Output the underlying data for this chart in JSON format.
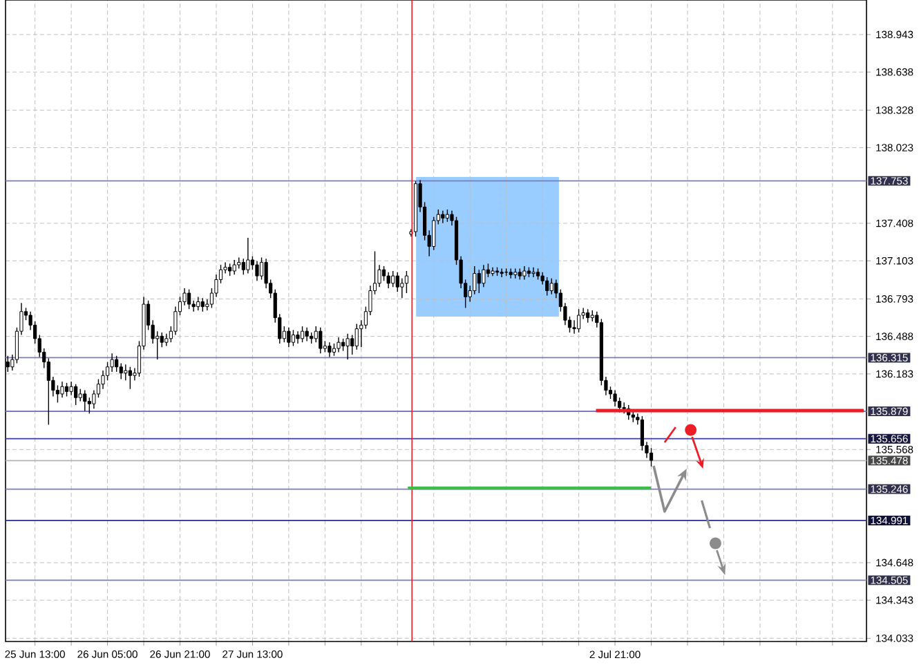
{
  "chart_data": {
    "type": "candlestick",
    "color": "#000000",
    "grid": true,
    "ylim": [
      134.007,
      139.224
    ],
    "yticks": [
      138.943,
      138.638,
      138.328,
      138.023,
      137.408,
      137.103,
      136.793,
      136.488,
      136.183,
      135.568,
      134.648,
      134.343,
      134.033
    ],
    "categories": [
      null,
      null,
      null,
      null,
      null,
      null,
      "25 Jun 13:00",
      null,
      null,
      null,
      null,
      null,
      null,
      null,
      null,
      null,
      null,
      null,
      null,
      null,
      null,
      null,
      "26 Jun 05:00",
      null,
      null,
      null,
      null,
      null,
      null,
      null,
      null,
      null,
      null,
      null,
      null,
      null,
      null,
      null,
      "26 Jun 21:00",
      null,
      null,
      null,
      null,
      null,
      null,
      null,
      null,
      null,
      null,
      null,
      null,
      null,
      null,
      null,
      "27 Jun 13:00",
      null,
      null,
      null,
      null,
      null,
      null,
      null,
      null,
      null,
      null,
      null,
      null,
      null,
      null,
      null,
      null,
      null,
      null,
      null,
      null,
      null,
      null,
      null,
      null,
      null,
      null,
      null,
      null,
      null,
      null,
      null,
      null,
      null,
      null,
      null,
      null,
      null,
      null,
      null,
      null,
      null,
      null,
      null,
      null,
      null,
      null,
      null,
      null,
      null,
      null,
      null,
      null,
      null,
      null,
      null,
      null,
      null,
      null,
      null,
      null,
      null,
      null,
      null,
      null,
      null,
      null,
      null,
      null,
      null,
      null,
      null,
      null,
      null,
      null,
      null,
      null,
      null,
      null,
      null,
      "2 Jul 21:00",
      null,
      null,
      null,
      null,
      null,
      null,
      null,
      null,
      null,
      null,
      null,
      null,
      null,
      null,
      null,
      null,
      null,
      null,
      null,
      null,
      null,
      null,
      null,
      null,
      null,
      null,
      null,
      null,
      null,
      null,
      null,
      null,
      null,
      null,
      null,
      null,
      null,
      null,
      null,
      null,
      null,
      null,
      null,
      null,
      null,
      null,
      null,
      null,
      null,
      null,
      null,
      null,
      null,
      null,
      null
    ],
    "ohlc": [
      [
        136.28,
        136.33,
        136.2,
        136.24
      ],
      [
        136.24,
        136.34,
        136.21,
        136.3
      ],
      [
        136.3,
        136.56,
        136.27,
        136.53
      ],
      [
        136.53,
        136.76,
        136.5,
        136.69
      ],
      [
        136.69,
        136.72,
        136.62,
        136.66
      ],
      [
        136.66,
        136.69,
        136.54,
        136.58
      ],
      [
        136.58,
        136.61,
        136.43,
        136.47
      ],
      [
        136.47,
        136.5,
        136.32,
        136.36
      ],
      [
        136.36,
        136.39,
        136.23,
        136.28
      ],
      [
        136.28,
        136.31,
        135.77,
        136.13
      ],
      [
        136.13,
        136.16,
        136.0,
        136.05
      ],
      [
        136.05,
        136.09,
        135.95,
        136.02
      ],
      [
        136.02,
        136.12,
        135.99,
        136.08
      ],
      [
        136.08,
        136.11,
        136.0,
        136.04
      ],
      [
        136.04,
        136.12,
        136.01,
        136.08
      ],
      [
        136.08,
        136.1,
        135.93,
        135.99
      ],
      [
        135.99,
        136.06,
        135.96,
        136.02
      ],
      [
        136.02,
        136.05,
        135.88,
        135.96
      ],
      [
        135.96,
        135.99,
        135.86,
        135.94
      ],
      [
        135.94,
        136.05,
        135.9,
        136.02
      ],
      [
        136.02,
        136.14,
        135.99,
        136.1
      ],
      [
        136.1,
        136.21,
        136.06,
        136.17
      ],
      [
        136.17,
        136.28,
        136.13,
        136.24
      ],
      [
        136.24,
        136.35,
        136.2,
        136.3
      ],
      [
        136.3,
        136.33,
        136.2,
        136.24
      ],
      [
        136.24,
        136.27,
        136.14,
        136.19
      ],
      [
        136.19,
        136.26,
        136.13,
        136.21
      ],
      [
        136.21,
        136.24,
        136.06,
        136.17
      ],
      [
        136.17,
        136.23,
        136.13,
        136.19
      ],
      [
        136.19,
        136.45,
        136.16,
        136.41
      ],
      [
        136.41,
        136.81,
        136.38,
        136.75
      ],
      [
        136.75,
        136.78,
        136.54,
        136.58
      ],
      [
        136.58,
        136.62,
        136.43,
        136.47
      ],
      [
        136.47,
        136.53,
        136.3,
        136.49
      ],
      [
        136.49,
        136.52,
        136.4,
        136.44
      ],
      [
        136.44,
        136.51,
        136.41,
        136.47
      ],
      [
        136.47,
        136.57,
        136.44,
        136.53
      ],
      [
        136.53,
        136.73,
        136.5,
        136.69
      ],
      [
        136.69,
        136.81,
        136.66,
        136.77
      ],
      [
        136.77,
        136.88,
        136.74,
        136.84
      ],
      [
        136.84,
        136.87,
        136.71,
        136.75
      ],
      [
        136.75,
        136.78,
        136.69,
        136.73
      ],
      [
        136.73,
        136.81,
        136.7,
        136.77
      ],
      [
        136.77,
        136.8,
        136.69,
        136.73
      ],
      [
        136.73,
        136.79,
        136.7,
        136.75
      ],
      [
        136.75,
        136.88,
        136.72,
        136.84
      ],
      [
        136.84,
        136.99,
        136.81,
        136.95
      ],
      [
        136.95,
        137.07,
        136.92,
        137.03
      ],
      [
        137.03,
        137.09,
        137.0,
        137.05
      ],
      [
        137.05,
        137.08,
        136.98,
        137.02
      ],
      [
        137.02,
        137.11,
        136.99,
        137.07
      ],
      [
        137.07,
        137.13,
        137.04,
        137.09
      ],
      [
        137.09,
        137.12,
        136.99,
        137.03
      ],
      [
        137.03,
        137.29,
        137.0,
        137.11
      ],
      [
        137.11,
        137.14,
        137.03,
        137.07
      ],
      [
        137.07,
        137.1,
        136.94,
        136.98
      ],
      [
        136.98,
        137.13,
        136.95,
        137.09
      ],
      [
        137.09,
        137.12,
        136.88,
        136.92
      ],
      [
        136.92,
        136.95,
        136.8,
        136.84
      ],
      [
        136.84,
        136.87,
        136.6,
        136.64
      ],
      [
        136.64,
        136.67,
        136.43,
        136.47
      ],
      [
        136.47,
        136.57,
        136.44,
        136.53
      ],
      [
        136.53,
        136.56,
        136.4,
        136.44
      ],
      [
        136.44,
        136.54,
        136.41,
        136.5
      ],
      [
        136.5,
        136.53,
        136.43,
        136.47
      ],
      [
        136.47,
        136.57,
        136.44,
        136.53
      ],
      [
        136.53,
        136.56,
        136.45,
        136.49
      ],
      [
        136.49,
        136.52,
        136.43,
        136.47
      ],
      [
        136.47,
        136.57,
        136.44,
        136.53
      ],
      [
        136.53,
        136.56,
        136.35,
        136.39
      ],
      [
        136.39,
        136.45,
        136.36,
        136.41
      ],
      [
        136.41,
        136.44,
        136.32,
        136.36
      ],
      [
        136.36,
        136.43,
        136.33,
        136.39
      ],
      [
        136.39,
        136.48,
        136.36,
        136.44
      ],
      [
        136.44,
        136.47,
        136.37,
        136.41
      ],
      [
        136.41,
        136.51,
        136.3,
        136.47
      ],
      [
        136.47,
        136.5,
        136.34,
        136.41
      ],
      [
        136.41,
        136.59,
        136.38,
        136.55
      ],
      [
        136.55,
        136.62,
        136.4,
        136.58
      ],
      [
        136.58,
        136.73,
        136.55,
        136.69
      ],
      [
        136.69,
        136.9,
        136.66,
        136.86
      ],
      [
        136.86,
        137.18,
        136.83,
        136.92
      ],
      [
        136.92,
        137.07,
        136.89,
        137.03
      ],
      [
        137.03,
        137.06,
        136.94,
        136.98
      ],
      [
        136.98,
        137.01,
        136.88,
        136.92
      ],
      [
        136.92,
        137.02,
        136.89,
        136.98
      ],
      [
        136.98,
        137.01,
        136.85,
        136.89
      ],
      [
        136.89,
        136.96,
        136.8,
        136.92
      ],
      [
        136.92,
        137.02,
        136.84,
        136.98
      ],
      [
        137.32,
        137.36,
        137.3,
        137.34
      ],
      [
        137.34,
        137.75,
        137.3,
        137.73
      ],
      [
        137.73,
        137.76,
        137.5,
        137.54
      ],
      [
        137.54,
        137.58,
        137.27,
        137.31
      ],
      [
        137.31,
        137.35,
        137.14,
        137.22
      ],
      [
        137.22,
        137.46,
        137.19,
        137.43
      ],
      [
        137.43,
        137.52,
        137.4,
        137.48
      ],
      [
        137.48,
        137.51,
        137.41,
        137.45
      ],
      [
        137.45,
        137.52,
        137.42,
        137.48
      ],
      [
        137.48,
        137.51,
        137.39,
        137.43
      ],
      [
        137.43,
        137.46,
        137.07,
        137.11
      ],
      [
        137.11,
        137.14,
        136.88,
        136.92
      ],
      [
        136.92,
        136.95,
        136.72,
        136.81
      ],
      [
        136.81,
        136.9,
        136.77,
        136.86
      ],
      [
        136.86,
        137.06,
        136.83,
        137.0
      ],
      [
        137.0,
        137.03,
        136.84,
        136.92
      ],
      [
        136.92,
        137.07,
        136.89,
        137.03
      ],
      [
        137.03,
        137.08,
        136.97,
        137.0
      ],
      [
        137.0,
        137.05,
        136.98,
        137.02
      ],
      [
        137.02,
        137.05,
        136.98,
        137.01
      ],
      [
        137.01,
        137.04,
        136.97,
        137.0
      ],
      [
        137.01,
        137.04,
        136.98,
        137.01
      ],
      [
        137.01,
        137.04,
        136.96,
        136.99
      ],
      [
        136.99,
        137.04,
        136.96,
        137.01
      ],
      [
        137.01,
        137.04,
        136.95,
        136.98
      ],
      [
        136.98,
        137.06,
        136.95,
        137.02
      ],
      [
        137.02,
        137.05,
        136.97,
        137.0
      ],
      [
        137.0,
        137.05,
        136.97,
        137.01
      ],
      [
        137.01,
        137.04,
        136.95,
        136.98
      ],
      [
        136.98,
        137.01,
        136.91,
        136.94
      ],
      [
        136.94,
        136.97,
        136.82,
        136.86
      ],
      [
        136.86,
        136.96,
        136.83,
        136.92
      ],
      [
        136.92,
        136.95,
        136.8,
        136.84
      ],
      [
        136.84,
        136.87,
        136.69,
        136.73
      ],
      [
        136.73,
        136.76,
        136.58,
        136.62
      ],
      [
        136.62,
        136.65,
        136.52,
        136.56
      ],
      [
        136.56,
        136.62,
        136.51,
        136.55
      ],
      [
        136.55,
        136.71,
        136.52,
        136.66
      ],
      [
        136.66,
        136.72,
        136.63,
        136.68
      ],
      [
        136.68,
        136.71,
        136.6,
        136.64
      ],
      [
        136.64,
        136.7,
        136.61,
        136.66
      ],
      [
        136.66,
        136.69,
        136.56,
        136.6
      ],
      [
        136.6,
        136.63,
        136.09,
        136.13
      ],
      [
        136.13,
        136.16,
        136.01,
        136.05
      ],
      [
        136.05,
        136.08,
        135.98,
        136.02
      ],
      [
        136.02,
        136.05,
        135.92,
        135.96
      ],
      [
        135.96,
        135.99,
        135.87,
        135.91
      ],
      [
        135.91,
        135.95,
        135.86,
        135.9
      ],
      [
        135.9,
        135.93,
        135.81,
        135.85
      ],
      [
        135.85,
        135.88,
        135.79,
        135.83
      ],
      [
        135.83,
        135.86,
        135.77,
        135.81
      ],
      [
        135.81,
        135.84,
        135.56,
        135.6
      ],
      [
        135.6,
        135.63,
        135.5,
        135.54
      ],
      [
        135.54,
        135.58,
        135.43,
        135.48
      ],
      null,
      null,
      null,
      null,
      null,
      null,
      null,
      null,
      null,
      null,
      null,
      null,
      null,
      null,
      null,
      null,
      null,
      null,
      null,
      null,
      null,
      null,
      null,
      null,
      null,
      null,
      null,
      null,
      null,
      null,
      null,
      null,
      null,
      null,
      null,
      null,
      null,
      null,
      null,
      null,
      null,
      null,
      null,
      null,
      null,
      null,
      null
    ],
    "ref_lines": [
      {
        "axis": "y",
        "value": 137.753,
        "label": "137.753",
        "color": "#7b7bc4"
      },
      {
        "axis": "y",
        "value": 136.315,
        "label": "136.315",
        "color": "#7b7bc4"
      },
      {
        "axis": "y",
        "value": 135.879,
        "label": "135.879",
        "color": "#7b7bc4"
      },
      {
        "axis": "y",
        "value": 135.656,
        "label": "135.656",
        "color": "#3c3c9c"
      },
      {
        "axis": "y",
        "value": 135.478,
        "label": "135.478",
        "color": "#b4b4b4"
      },
      {
        "axis": "y",
        "value": 135.246,
        "label": "135.246",
        "color": "#7b7bc4"
      },
      {
        "axis": "y",
        "value": 134.991,
        "label": "134.991",
        "color": "#2a2a8a"
      },
      {
        "axis": "y",
        "value": 134.505,
        "label": "134.505",
        "color": "#7b7bc4"
      }
    ]
  }
}
